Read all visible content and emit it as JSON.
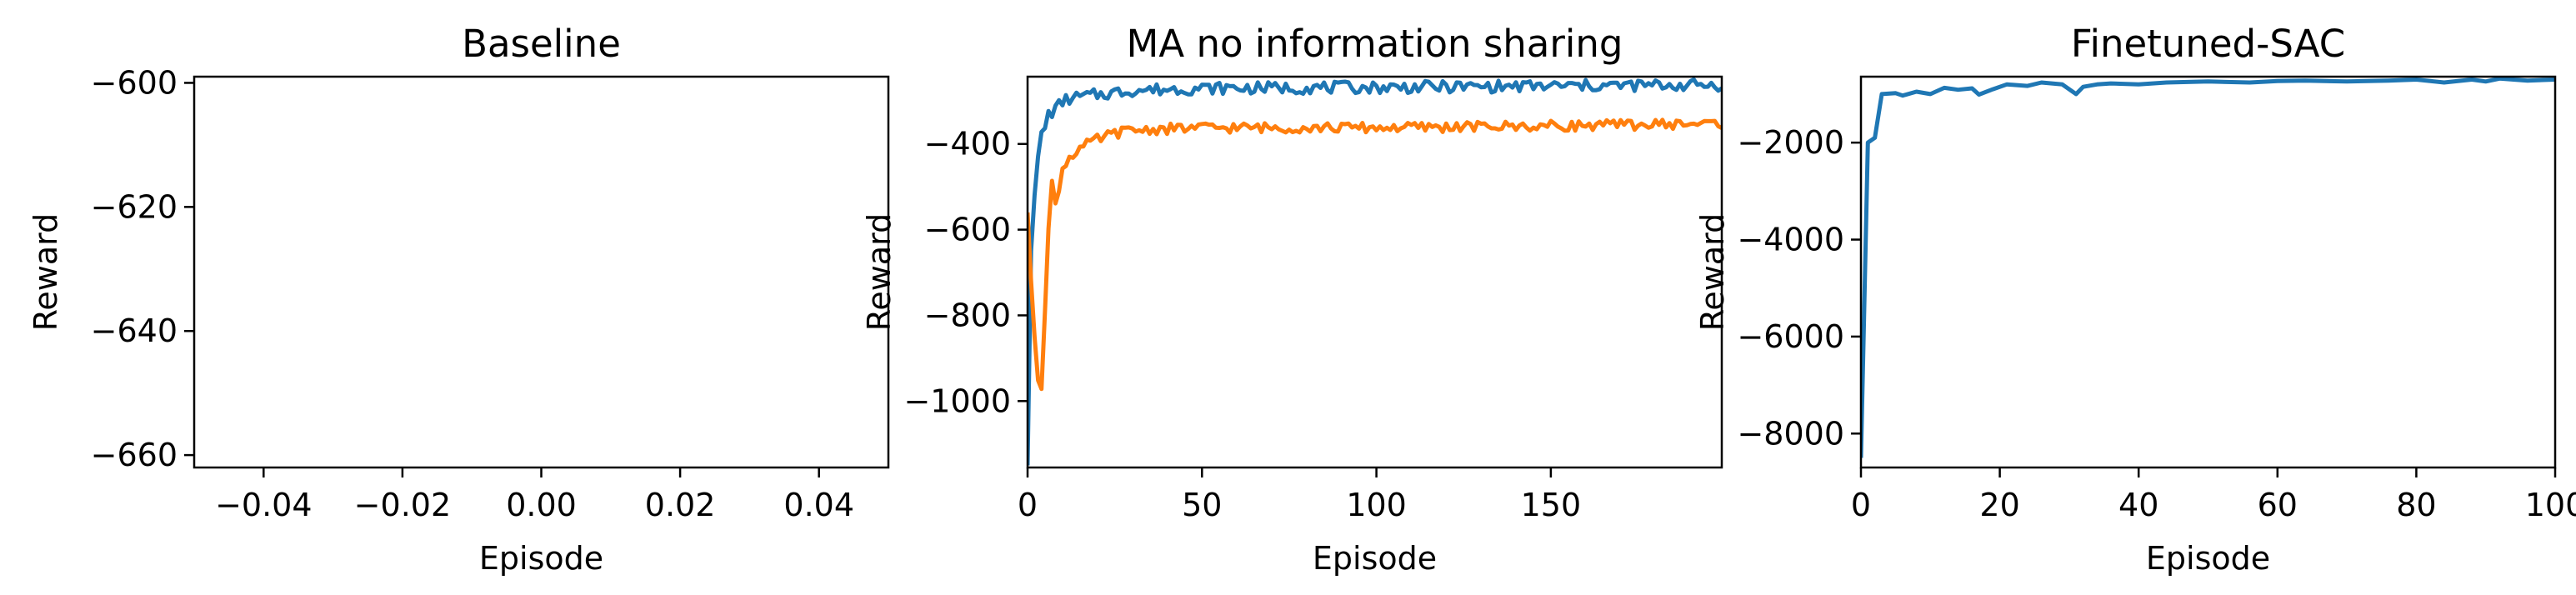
{
  "chart_data": [
    {
      "type": "line",
      "title": "Baseline",
      "xlabel": "Episode",
      "ylabel": "Reward",
      "xlim": [
        -0.05,
        0.05
      ],
      "ylim": [
        -662,
        -599
      ],
      "xticks": [
        "−0.04",
        "−0.02",
        "0.00",
        "0.02",
        "0.04"
      ],
      "yticks": [
        "−600",
        "−620",
        "−640",
        "−660"
      ],
      "series": [],
      "grid": false
    },
    {
      "type": "line",
      "title": "MA no information sharing",
      "xlabel": "Episode",
      "ylabel": "Reward",
      "xlim": [
        0,
        199
      ],
      "ylim": [
        -1155,
        -243
      ],
      "xticks": [
        "0",
        "50",
        "100",
        "150"
      ],
      "yticks": [
        "−400",
        "−600",
        "−800",
        "−1000"
      ],
      "series": [
        {
          "color": "#1f77b4",
          "points": [
            [
              0,
              -1150
            ],
            [
              1,
              -650
            ],
            [
              2,
              -520
            ],
            [
              3,
              -430
            ],
            [
              4,
              -380
            ],
            [
              5,
              -360
            ],
            [
              6,
              -330
            ],
            [
              8,
              -320
            ],
            [
              10,
              -300
            ],
            [
              12,
              -295
            ],
            [
              15,
              -290
            ],
            [
              20,
              -285
            ],
            [
              30,
              -275
            ],
            [
              50,
              -270
            ],
            [
              100,
              -268
            ],
            [
              150,
              -265
            ],
            [
              199,
              -262
            ]
          ],
          "noise": 14
        },
        {
          "color": "#ff7f0e",
          "points": [
            [
              0,
              -560
            ],
            [
              1,
              -720
            ],
            [
              2,
              -850
            ],
            [
              3,
              -945
            ],
            [
              4,
              -960
            ],
            [
              5,
              -780
            ],
            [
              6,
              -600
            ],
            [
              7,
              -495
            ],
            [
              8,
              -540
            ],
            [
              9,
              -500
            ],
            [
              10,
              -460
            ],
            [
              12,
              -430
            ],
            [
              15,
              -410
            ],
            [
              20,
              -390
            ],
            [
              25,
              -375
            ],
            [
              30,
              -368
            ],
            [
              50,
              -362
            ],
            [
              100,
              -362
            ],
            [
              150,
              -358
            ],
            [
              199,
              -352
            ]
          ],
          "noise": 12
        }
      ],
      "grid": false
    },
    {
      "type": "line",
      "title": "Finetuned-SAC",
      "xlabel": "Episode",
      "ylabel": "Reward",
      "xlim": [
        0,
        100
      ],
      "ylim": [
        -8700,
        -640
      ],
      "xticks": [
        "0",
        "20",
        "40",
        "60",
        "80",
        "100"
      ],
      "yticks": [
        "−2000",
        "−4000",
        "−6000",
        "−8000"
      ],
      "series": [
        {
          "color": "#1f77b4",
          "points": [
            [
              0,
              -8500
            ],
            [
              1,
              -2000
            ],
            [
              2,
              -1900
            ],
            [
              3,
              -1000
            ],
            [
              5,
              -980
            ],
            [
              6,
              -1030
            ],
            [
              8,
              -950
            ],
            [
              10,
              -1000
            ],
            [
              12,
              -870
            ],
            [
              14,
              -910
            ],
            [
              16,
              -880
            ],
            [
              17,
              -1010
            ],
            [
              19,
              -900
            ],
            [
              21,
              -800
            ],
            [
              24,
              -830
            ],
            [
              26,
              -760
            ],
            [
              29,
              -800
            ],
            [
              31,
              -1000
            ],
            [
              32,
              -850
            ],
            [
              34,
              -800
            ],
            [
              36,
              -780
            ],
            [
              40,
              -800
            ],
            [
              44,
              -760
            ],
            [
              50,
              -740
            ],
            [
              56,
              -760
            ],
            [
              60,
              -730
            ],
            [
              64,
              -720
            ],
            [
              70,
              -740
            ],
            [
              76,
              -720
            ],
            [
              80,
              -700
            ],
            [
              84,
              -760
            ],
            [
              88,
              -700
            ],
            [
              90,
              -740
            ],
            [
              92,
              -680
            ],
            [
              96,
              -720
            ],
            [
              100,
              -700
            ]
          ],
          "noise": 0
        }
      ],
      "grid": false
    }
  ]
}
